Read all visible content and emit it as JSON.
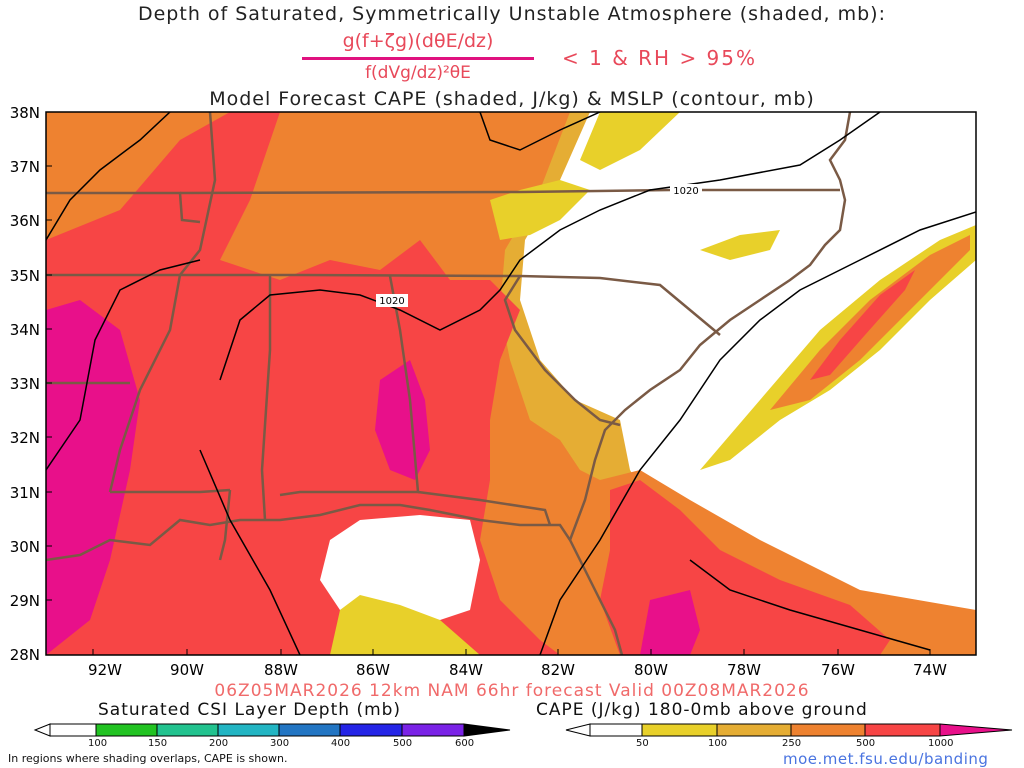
{
  "titles": {
    "line1": "Depth of Saturated, Symmetrically Unstable Atmosphere (shaded, mb):",
    "numerator": "g(f+ζg)(dθE/dz)",
    "denominator": "f(dVg/dz)²θE",
    "condition": "< 1 & RH > 95%",
    "line3": "Model Forecast CAPE (shaded, J/kg) & MSLP (contour, mb)"
  },
  "valid_line": "06Z05MAR2026 12km NAM 66hr forecast Valid 00Z08MAR2026",
  "map": {
    "lat_labels": [
      "38N",
      "37N",
      "36N",
      "35N",
      "34N",
      "33N",
      "32N",
      "31N",
      "30N",
      "29N",
      "28N"
    ],
    "lon_labels": [
      "92W",
      "90W",
      "88W",
      "86W",
      "84W",
      "82W",
      "80W",
      "78W",
      "76W",
      "74W"
    ],
    "isobar_labels": [
      "1020",
      "1020"
    ],
    "colors": {
      "cape_50": "#e8d02a",
      "cape_100": "#e5ad34",
      "cape_250": "#ee8230",
      "cape_500": "#f74545",
      "cape_1000": "#e8108a",
      "state_lines": "#7a5a45",
      "isobar": "#000000"
    }
  },
  "legend_csi": {
    "title": "Saturated CSI Layer Depth (mb)",
    "ticks": [
      "100",
      "150",
      "200",
      "300",
      "400",
      "500",
      "600"
    ],
    "colors": [
      "#22c322",
      "#22c38f",
      "#22b5c3",
      "#2275c3",
      "#2424e6",
      "#7a22e6"
    ]
  },
  "legend_cape": {
    "title": "CAPE (J/kg) 180-0mb above ground",
    "ticks": [
      "50",
      "100",
      "250",
      "500",
      "1000"
    ],
    "colors": [
      "#e8d02a",
      "#e5ad34",
      "#ee8230",
      "#f45a3a",
      "#f74545",
      "#e8108a"
    ]
  },
  "footer": {
    "note": "In regions where shading overlaps, CAPE is shown.",
    "link": "moe.met.fsu.edu/banding"
  }
}
